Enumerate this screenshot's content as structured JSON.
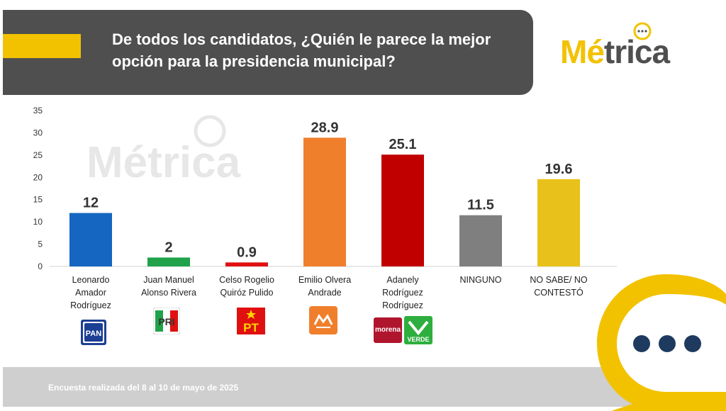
{
  "header": {
    "question": "De todos los candidatos, ¿Quién le parece la mejor opción para la presidencia municipal?"
  },
  "brand": {
    "logo_text": "Métrica",
    "accent": "#f2c200",
    "dark": "#4f4f4f"
  },
  "footer": {
    "note": "Encuesta realizada del 8 al 10 de mayo de 2025"
  },
  "chart_data": {
    "type": "bar",
    "categories": [
      [
        "Leonardo",
        "Amador",
        "Rodríguez"
      ],
      [
        "Juan Manuel",
        "Alonso Rivera"
      ],
      [
        "Celso Rogelio",
        "Quiróz Pulido"
      ],
      [
        "Emilio Olvera",
        "Andrade"
      ],
      [
        "Adanely",
        "Rodríguez",
        "Rodríguez"
      ],
      [
        "NINGUNO"
      ],
      [
        "NO SABE/ NO",
        "CONTESTÓ"
      ]
    ],
    "values": [
      12,
      2,
      0.9,
      28.9,
      25.1,
      11.5,
      19.6
    ],
    "value_labels": [
      "12",
      "2",
      "0.9",
      "28.9",
      "25.1",
      "11.5",
      "19.6"
    ],
    "colors": [
      "#1466c0",
      "#1fa24a",
      "#e01010",
      "#f07f2c",
      "#c00000",
      "#7f7f7f",
      "#e8c21a"
    ],
    "yticks": [
      "0",
      "5",
      "10",
      "15",
      "20",
      "25",
      "30",
      "35"
    ],
    "ylim": [
      0,
      35
    ],
    "grid": false,
    "legend": "none"
  },
  "parties": {
    "pan": "PAN",
    "pt": "PT",
    "morena": "morena",
    "verde": "VERDE"
  },
  "icons": [
    "speech-bubble-icon",
    "pan-logo",
    "pri-logo",
    "pt-logo",
    "mc-logo",
    "morena-logo",
    "verde-logo",
    "bubble-dots-icon"
  ]
}
